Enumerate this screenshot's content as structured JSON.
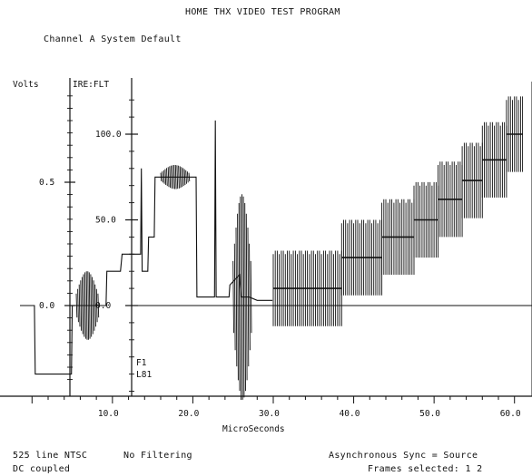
{
  "header": {
    "title": "HOME THX VIDEO TEST PROGRAM",
    "channel": "Channel A  System Default"
  },
  "chart_data": {
    "type": "line",
    "title": "HOME THX VIDEO TEST PROGRAM",
    "xlabel": "MicroSeconds",
    "xlim": [
      -1.5,
      61.5
    ],
    "x_ticks": [
      10,
      20,
      30,
      40,
      50,
      60
    ],
    "x_tick_labels": [
      "10.0",
      "20.0",
      "30.0",
      "40.0",
      "50.0",
      "60.0"
    ],
    "volts_axis": {
      "label": "Volts",
      "ticks": [
        0.0,
        0.5
      ],
      "tick_labels": [
        "0.0",
        "0.5"
      ]
    },
    "ire_axis": {
      "label": "IRE:FLT",
      "ticks": [
        0,
        50,
        100
      ],
      "tick_labels": [
        "0.0",
        "50.0",
        "100.0"
      ],
      "ylim": [
        -55,
        120
      ]
    },
    "annotations": [
      "F1",
      "L81"
    ],
    "waveform": [
      [
        -1.5,
        0
      ],
      [
        0.3,
        0
      ],
      [
        0.4,
        -40
      ],
      [
        4.9,
        -40
      ],
      [
        5.0,
        0
      ],
      [
        9.2,
        0
      ],
      [
        9.3,
        20
      ],
      [
        10.2,
        20
      ],
      [
        11.0,
        20
      ],
      [
        11.2,
        30
      ],
      [
        13.5,
        30
      ],
      [
        13.6,
        80
      ],
      [
        13.7,
        20
      ],
      [
        14.4,
        20
      ],
      [
        14.5,
        40
      ],
      [
        15.2,
        40
      ],
      [
        15.3,
        75
      ],
      [
        20.4,
        75
      ],
      [
        20.5,
        5
      ],
      [
        22.7,
        5
      ],
      [
        22.8,
        108
      ],
      [
        22.9,
        5
      ],
      [
        24.5,
        5
      ],
      [
        24.6,
        12
      ],
      [
        25.8,
        18
      ],
      [
        26.0,
        5
      ],
      [
        27.0,
        5
      ],
      [
        28.0,
        3
      ],
      [
        29.9,
        3
      ]
    ],
    "burst": {
      "center_x": 7.0,
      "x_range": [
        5.5,
        8.2
      ],
      "level": 0,
      "amplitude": 20
    },
    "bursts": [
      {
        "center_x": 18.0,
        "x_range": [
          16.0,
          19.5
        ],
        "level": 75,
        "amplitude": 7
      },
      {
        "center_x": 26.0,
        "x_range": [
          25.0,
          27.2
        ],
        "level": 5,
        "amplitude": 60
      }
    ],
    "ramp_steps": [
      {
        "x_range": [
          30.0,
          38.5
        ],
        "level": 10,
        "amplitude": 22
      },
      {
        "x_range": [
          38.5,
          43.5
        ],
        "level": 28,
        "amplitude": 22
      },
      {
        "x_range": [
          43.5,
          47.5
        ],
        "level": 40,
        "amplitude": 22
      },
      {
        "x_range": [
          47.5,
          50.5
        ],
        "level": 50,
        "amplitude": 22
      },
      {
        "x_range": [
          50.5,
          53.5
        ],
        "level": 62,
        "amplitude": 22
      },
      {
        "x_range": [
          53.5,
          56.0
        ],
        "level": 73,
        "amplitude": 22
      },
      {
        "x_range": [
          56.0,
          59.0
        ],
        "level": 85,
        "amplitude": 22
      },
      {
        "x_range": [
          59.0,
          61.0
        ],
        "level": 100,
        "amplitude": 22
      }
    ],
    "baseline_ire": 0
  },
  "footer": {
    "line1_left": "525 line NTSC",
    "line1_mid": "No Filtering",
    "line1_right": "Asynchronous    Sync = Source",
    "line2_left": "DC coupled",
    "line2_right": "Frames selected: 1 2"
  }
}
